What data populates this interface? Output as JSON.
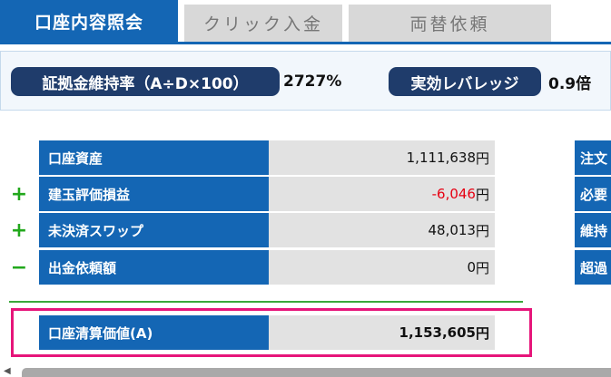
{
  "tabs": [
    {
      "label": "口座内容照会",
      "active": true
    },
    {
      "label": "クリック入金",
      "active": false
    },
    {
      "label": "両替依頼",
      "active": false
    }
  ],
  "ratios": {
    "margin_ratio_label": "証拠金維持率（A÷D×100）",
    "margin_ratio_value": "2727%",
    "leverage_label": "実効レバレッジ",
    "leverage_value": "0.9倍"
  },
  "rows": [
    {
      "sign": "",
      "label": "口座資産",
      "value": "1,111,638",
      "unit": "円"
    },
    {
      "sign": "+",
      "label": "建玉評価損益",
      "value": "-6,046",
      "unit": "円"
    },
    {
      "sign": "+",
      "label": "未決済スワップ",
      "value": "48,013",
      "unit": "円"
    },
    {
      "sign": "−",
      "label": "出金依頼額",
      "value": "0",
      "unit": "円"
    }
  ],
  "total": {
    "label": "口座清算価値(A)",
    "value": "1,153,605",
    "unit": "円"
  },
  "right_column": [
    "注文",
    "必要",
    "維持",
    "超過"
  ],
  "colors": {
    "accent": "#1466b4",
    "negative": "#e60012",
    "highlight": "#e6157a",
    "plus": "#22a81c"
  }
}
